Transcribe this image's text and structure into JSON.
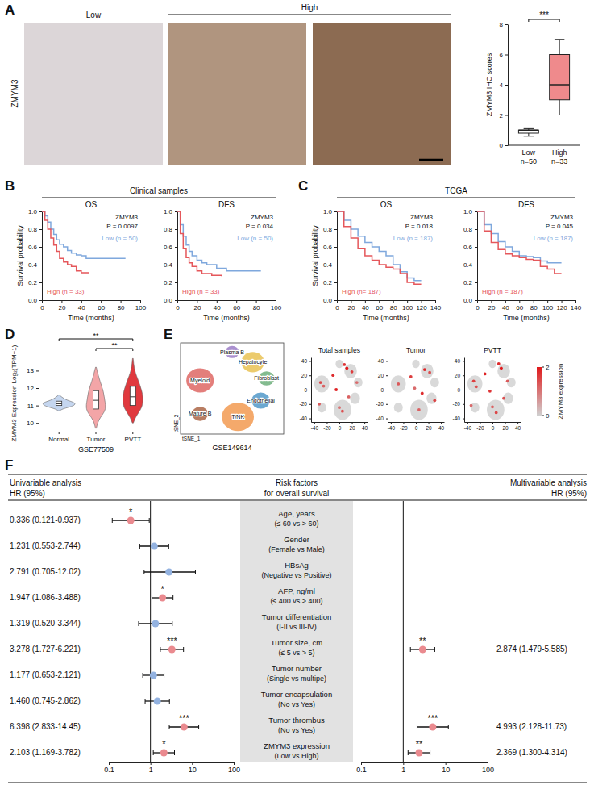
{
  "chart_data": [
    {
      "type": "box",
      "panel": "A",
      "image_label": "ZMYM3",
      "image_groups": [
        "Low",
        "High"
      ],
      "categories": [
        "Low",
        "High"
      ],
      "n_labels": [
        "n=50",
        "n=33"
      ],
      "ylabel": "ZMYM3 IHC scores",
      "ylim": [
        0,
        8
      ],
      "yticks": [
        0,
        2,
        4,
        6,
        8
      ],
      "min": [
        0.6,
        2
      ],
      "q1": [
        0.8,
        3
      ],
      "median": [
        1,
        4
      ],
      "q3": [
        1,
        6
      ],
      "max": [
        1.1,
        7
      ],
      "colors": [
        "#ffffff",
        "#ef8a8c"
      ],
      "annotation": "***"
    },
    {
      "type": "line",
      "panel": "B",
      "header": "Clinical samples",
      "title": "OS",
      "ylabel": "Survival probability",
      "xlabel": "Time (months)",
      "annotation_title": "ZMYM3",
      "annotation": "P = 0.0097",
      "line_style": "step",
      "xlim": [
        0,
        100
      ],
      "xticks": [
        0,
        20,
        40,
        60,
        80,
        100
      ],
      "ylim": [
        0,
        1
      ],
      "yticks": [
        {
          "value": 0,
          "label": "0.0"
        },
        0.2,
        0.4,
        0.6,
        0.8,
        {
          "value": 1,
          "label": "1.0"
        }
      ],
      "series": [
        {
          "name": "Low (n = 50)",
          "color": "#7fa8dd",
          "x": [
            0,
            3,
            6,
            9,
            12,
            15,
            18,
            22,
            26,
            30,
            35,
            40,
            45,
            50,
            60,
            70,
            85
          ],
          "values": [
            1.0,
            0.95,
            0.88,
            0.8,
            0.74,
            0.68,
            0.63,
            0.6,
            0.56,
            0.53,
            0.51,
            0.5,
            0.47,
            0.47,
            0.47,
            0.47,
            0.47
          ]
        },
        {
          "name": "High (n = 33)",
          "color": "#e5575b",
          "x": [
            0,
            3,
            6,
            9,
            12,
            15,
            18,
            22,
            26,
            30,
            35,
            40,
            45,
            48
          ],
          "values": [
            1.0,
            0.9,
            0.8,
            0.7,
            0.62,
            0.55,
            0.47,
            0.43,
            0.4,
            0.38,
            0.33,
            0.31,
            0.31,
            0.31
          ]
        }
      ]
    },
    {
      "type": "line",
      "title": "DFS",
      "xlabel": "Time (months)",
      "annotation_title": "ZMYM3",
      "annotation": "P = 0.034",
      "line_style": "step",
      "xlim": [
        0,
        100
      ],
      "xticks": [
        0,
        20,
        40,
        60,
        80,
        100
      ],
      "ylim": [
        0,
        1
      ],
      "yticks": [
        {
          "value": 0,
          "label": "0.0"
        },
        0.2,
        0.4,
        0.6,
        0.8,
        {
          "value": 1,
          "label": "1.0"
        }
      ],
      "series": [
        {
          "name": "Low (n = 50)",
          "color": "#7fa8dd",
          "x": [
            0,
            3,
            6,
            9,
            12,
            15,
            20,
            25,
            30,
            40,
            50,
            60,
            85
          ],
          "values": [
            1.0,
            0.85,
            0.72,
            0.62,
            0.55,
            0.5,
            0.45,
            0.42,
            0.4,
            0.36,
            0.33,
            0.33,
            0.33
          ]
        },
        {
          "name": "High (n = 33)",
          "color": "#e5575b",
          "x": [
            0,
            3,
            6,
            9,
            12,
            15,
            20,
            25,
            35,
            45
          ],
          "values": [
            1.0,
            0.75,
            0.58,
            0.48,
            0.42,
            0.38,
            0.33,
            0.3,
            0.28,
            0.27
          ]
        }
      ]
    },
    {
      "type": "line",
      "panel": "C",
      "header": "TCGA",
      "title": "OS",
      "ylabel": "Survival probability",
      "xlabel": "Time (months)",
      "annotation_title": "ZMYM3",
      "annotation": "P = 0.018",
      "line_style": "step",
      "xlim": [
        0,
        140
      ],
      "xticks": [
        0,
        20,
        40,
        60,
        80,
        100,
        120,
        140
      ],
      "ylim": [
        0,
        1
      ],
      "yticks": [
        {
          "value": 0,
          "label": "0.0"
        },
        0.2,
        0.4,
        0.6,
        0.8,
        {
          "value": 1,
          "label": "1.0"
        }
      ],
      "series": [
        {
          "name": "Low (n = 187)",
          "color": "#7fa8dd",
          "x": [
            0,
            10,
            20,
            30,
            40,
            50,
            60,
            70,
            80,
            90,
            100,
            110,
            120
          ],
          "values": [
            1.0,
            0.9,
            0.8,
            0.72,
            0.65,
            0.6,
            0.55,
            0.5,
            0.4,
            0.32,
            0.25,
            0.22,
            0.22
          ]
        },
        {
          "name": "High (n= 187)",
          "color": "#e5575b",
          "x": [
            0,
            10,
            20,
            30,
            40,
            50,
            60,
            70,
            80,
            90,
            100,
            110,
            120
          ],
          "values": [
            1.0,
            0.83,
            0.7,
            0.58,
            0.5,
            0.45,
            0.4,
            0.37,
            0.35,
            0.3,
            0.2,
            0.18,
            0.18
          ]
        }
      ]
    },
    {
      "type": "line",
      "title": "DFS",
      "xlabel": "Time (months)",
      "annotation_title": "ZMYM3",
      "annotation": "P = 0.045",
      "line_style": "step",
      "xlim": [
        0,
        140
      ],
      "xticks": [
        0,
        20,
        40,
        60,
        80,
        100,
        120,
        140
      ],
      "ylim": [
        0,
        1
      ],
      "yticks": [
        {
          "value": 0,
          "label": "0.0"
        },
        0.2,
        0.4,
        0.6,
        0.8,
        {
          "value": 1,
          "label": "1.0"
        }
      ],
      "series": [
        {
          "name": "Low (n = 187)",
          "color": "#7fa8dd",
          "x": [
            0,
            10,
            20,
            30,
            40,
            50,
            60,
            70,
            80,
            90,
            100,
            110,
            120
          ],
          "values": [
            1.0,
            0.85,
            0.75,
            0.66,
            0.6,
            0.55,
            0.5,
            0.49,
            0.48,
            0.44,
            0.42,
            0.42,
            0.42
          ]
        },
        {
          "name": "High (n = 187)",
          "color": "#e5575b",
          "x": [
            0,
            10,
            20,
            30,
            40,
            50,
            60,
            70,
            80,
            90,
            100,
            110,
            120
          ],
          "values": [
            1.0,
            0.78,
            0.65,
            0.57,
            0.52,
            0.5,
            0.48,
            0.46,
            0.45,
            0.38,
            0.35,
            0.3,
            0.3
          ]
        }
      ]
    },
    {
      "type": "violin",
      "panel": "D",
      "categories": [
        "Normal",
        "Tumor",
        "PVTT"
      ],
      "colors": [
        "#c5d6ef",
        "#f3a5a7",
        "#e0393e"
      ],
      "xlabel": "GSE77509",
      "ylabel": "ZMYM3 Expression Log₂(TPM+1)",
      "ylim": [
        9.5,
        13.9
      ],
      "yticks": [
        10,
        11,
        12,
        13
      ],
      "density_y": [
        [
          10.7,
          10.8,
          10.9,
          11.0,
          11.1,
          11.2,
          11.3,
          11.4,
          11.5,
          11.6
        ],
        [
          9.7,
          10.0,
          10.3,
          10.6,
          10.9,
          11.2,
          11.5,
          11.8,
          12.1,
          12.4,
          12.7,
          13.0,
          13.2
        ],
        [
          10.0,
          10.3,
          10.6,
          10.9,
          11.2,
          11.5,
          11.8,
          12.1,
          12.4,
          12.7,
          13.0,
          13.3,
          13.7
        ]
      ],
      "density": [
        [
          0.05,
          0.2,
          0.6,
          0.9,
          1.0,
          0.85,
          0.5,
          0.3,
          0.15,
          0.03
        ],
        [
          0.03,
          0.1,
          0.25,
          0.5,
          0.6,
          0.55,
          0.5,
          0.45,
          0.35,
          0.25,
          0.15,
          0.08,
          0.02
        ],
        [
          0.03,
          0.15,
          0.35,
          0.55,
          0.6,
          0.6,
          0.55,
          0.45,
          0.35,
          0.22,
          0.12,
          0.06,
          0.02
        ]
      ],
      "q1": [
        11.0,
        10.8,
        11.0
      ],
      "median": [
        11.1,
        11.3,
        11.5
      ],
      "q3": [
        11.25,
        11.85,
        12.1
      ],
      "comparisons": [
        {
          "pair": [
            "Normal",
            "PVTT"
          ],
          "label": "**"
        },
        {
          "pair": [
            "Tumor",
            "PVTT"
          ],
          "label": "**"
        }
      ]
    },
    {
      "type": "scatter",
      "panel": "E",
      "caption": "GSE149614",
      "xlabel": "tSNE_1",
      "ylabel": "tSNE_2",
      "xlim": [
        -45,
        45
      ],
      "ylim": [
        -45,
        45
      ],
      "tick_labels": false,
      "categories": [
        "Plasma B",
        "Hepatocyte",
        "Fibroblast",
        "Myeloid",
        "Endothelial",
        "Mature B",
        "T/NK"
      ],
      "x": [
        0,
        18,
        30,
        -28,
        25,
        -28,
        5
      ],
      "y": [
        36,
        26,
        10,
        8,
        -12,
        -25,
        -28
      ],
      "sizes": [
        6,
        10,
        7,
        12,
        8,
        7,
        14
      ],
      "colors": [
        "#8e6bbf",
        "#e5b93c",
        "#5aa469",
        "#d9534f",
        "#3b8bc2",
        "#a0522d",
        "#f08c3a"
      ]
    },
    {
      "type": "scatter",
      "title": "Total samples",
      "xlim": [
        -45,
        45
      ],
      "ylim": [
        -45,
        45
      ],
      "xticks": [
        -40,
        -20,
        0,
        20,
        40
      ],
      "yticks": [
        -40,
        -20,
        0,
        20,
        40
      ],
      "x": [
        -30,
        -25,
        -10,
        0,
        5,
        12,
        20,
        28,
        -32,
        8,
        15,
        -5
      ],
      "y": [
        10,
        5,
        20,
        -25,
        -30,
        30,
        25,
        10,
        -20,
        35,
        -10,
        0
      ],
      "expression": [
        1.5,
        1.2,
        1.8,
        1.0,
        1.4,
        2.0,
        1.6,
        1.1,
        1.3,
        1.7,
        1.2,
        1.9
      ]
    },
    {
      "type": "scatter",
      "title": "Tumor",
      "xlim": [
        -45,
        45
      ],
      "ylim": [
        -45,
        45
      ],
      "xticks": [
        -40,
        -20,
        0,
        20,
        40
      ],
      "yticks": [
        -40,
        -20,
        0,
        20,
        40
      ],
      "x": [
        -28,
        -8,
        5,
        14,
        22,
        -2,
        30,
        10
      ],
      "y": [
        8,
        18,
        -28,
        28,
        24,
        2,
        -15,
        -5
      ],
      "expression": [
        1.3,
        1.6,
        1.2,
        1.9,
        1.4,
        1.1,
        1.5,
        1.8
      ]
    },
    {
      "type": "scatter",
      "title": "PVTT",
      "xlim": [
        -45,
        45
      ],
      "ylim": [
        -45,
        45
      ],
      "xticks": [
        -40,
        -20,
        0,
        20,
        40
      ],
      "yticks": [
        -40,
        -20,
        0,
        20,
        40
      ],
      "x": [
        -30,
        -26,
        -12,
        0,
        6,
        14,
        24,
        -34,
        10,
        -4,
        18
      ],
      "y": [
        12,
        4,
        22,
        -24,
        -32,
        30,
        12,
        -22,
        36,
        -2,
        -12
      ],
      "expression": [
        1.6,
        1.4,
        1.9,
        1.2,
        1.5,
        2.0,
        1.3,
        1.1,
        1.8,
        1.7,
        1.4
      ],
      "colorbar": {
        "title": "ZMYM3 expression",
        "range": [
          0,
          2
        ],
        "ticks": [
          0,
          2
        ],
        "colors": [
          "#d0d0d0",
          "#e0191b"
        ]
      }
    },
    {
      "type": "forest",
      "panel": "F",
      "title": "Risk factors",
      "subtitle": "for overall survival",
      "log": "x",
      "xlim": [
        0.1,
        100
      ],
      "xticks": [
        0.1,
        1,
        10,
        100
      ],
      "reference": 1,
      "categories": [
        "Age, years",
        "Gender",
        "HBsAg",
        "AFP, ng/ml",
        "Tumor differentiation",
        "Tumor size, cm",
        "Tumor number",
        "Tumor encapsulation",
        "Tumor thrombus",
        "ZMYM3 expression"
      ],
      "comparisons": [
        "(≤ 60 vs > 60)",
        "(Female vs Male)",
        "(Negative vs Positive)",
        "(≤ 400 vs > 400)",
        "(I-II vs III-IV)",
        "(≤ 5 vs > 5)",
        "(Single vs multipe)",
        "(No vs Yes)",
        "(No vs Yes)",
        "(Low vs High)"
      ],
      "series": [
        {
          "name": "Univariable analysis",
          "label": "HR (95%)",
          "values": [
            0.336,
            1.231,
            2.791,
            1.947,
            1.319,
            3.278,
            1.177,
            1.46,
            6.398,
            2.103
          ],
          "lower": [
            0.121,
            0.553,
            0.705,
            1.086,
            0.52,
            1.727,
            0.653,
            0.745,
            2.833,
            1.169
          ],
          "upper": [
            0.937,
            2.744,
            12.02,
            3.488,
            3.344,
            6.221,
            2.121,
            2.862,
            14.45,
            3.782
          ],
          "value_labels": [
            "0.336 (0.121-0.937)",
            "1.231 (0.553-2.744)",
            "2.791 (0.705-12.02)",
            "1.947 (1.086-3.488)",
            "1.319 (0.520-3.344)",
            "3.278 (1.727-6.221)",
            "1.177 (0.653-2.121)",
            "1.460 (0.745-2.862)",
            "6.398 (2.833-14.45)",
            "2.103 (1.169-3.782)"
          ],
          "significance": [
            "*",
            null,
            null,
            "*",
            null,
            "***",
            null,
            null,
            "***",
            "*"
          ],
          "colors": [
            "#ea8a8f",
            "#93b2e0",
            "#93b2e0",
            "#ea8a8f",
            "#93b2e0",
            "#ea8a8f",
            "#93b2e0",
            "#93b2e0",
            "#ea8a8f",
            "#ea8a8f"
          ]
        },
        {
          "name": "Multivariable analysis",
          "label": "HR (95%)",
          "values": [
            null,
            null,
            null,
            null,
            null,
            2.874,
            null,
            null,
            4.993,
            2.369
          ],
          "lower": [
            null,
            null,
            null,
            null,
            null,
            1.479,
            null,
            null,
            2.128,
            1.3
          ],
          "upper": [
            null,
            null,
            null,
            null,
            null,
            5.585,
            null,
            null,
            11.73,
            4.314
          ],
          "value_labels": [
            null,
            null,
            null,
            null,
            null,
            "2.874 (1.479-5.585)",
            null,
            null,
            "4.993 (2.128-11.73)",
            "2.369 (1.300-4.314)"
          ],
          "significance": [
            null,
            null,
            null,
            null,
            null,
            "**",
            null,
            null,
            "***",
            "**"
          ],
          "colors": [
            null,
            null,
            null,
            null,
            null,
            "#ea8a8f",
            null,
            null,
            "#ea8a8f",
            "#ea8a8f"
          ]
        }
      ]
    }
  ]
}
